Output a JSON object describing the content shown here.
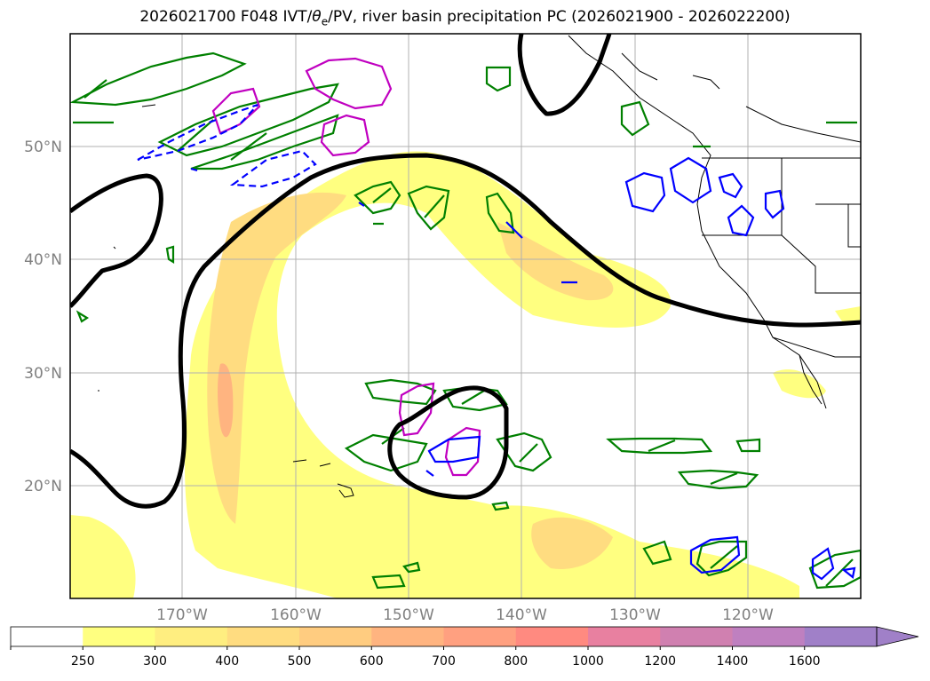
{
  "title": {
    "prefix": "2026021700 F048 IVT/",
    "theta": "θ",
    "theta_sub": "e",
    "suffix": "/PV, river basin precipitation PC (2026021900 - 2026022200)"
  },
  "axes": {
    "lat_labels": [
      "50°N",
      "40°N",
      "30°N",
      "20°N"
    ],
    "lon_labels": [
      "170°W",
      "160°W",
      "150°W",
      "140°W",
      "130°W",
      "120°W"
    ]
  },
  "colorbar": {
    "ticks": [
      "250",
      "300",
      "400",
      "500",
      "600",
      "700",
      "800",
      "1000",
      "1200",
      "1400",
      "1600"
    ],
    "colors": [
      "#ffffff",
      "#ffff80",
      "#ffee80",
      "#ffdc80",
      "#ffcc80",
      "#ffb480",
      "#ffa080",
      "#ff8a80",
      "#e880a0",
      "#d080b0",
      "#bf80c0",
      "#a080c8"
    ],
    "extend_color": "#a080c8"
  },
  "colors": {
    "ivt_low": "#ffff80",
    "ivt_mid": "#ffdc80",
    "ivt_high": "#ffb480",
    "pv_contour": "#000000",
    "theta_contour": "#008000",
    "wind_contour": "#0000ff",
    "magenta_contour": "#c000c0"
  }
}
